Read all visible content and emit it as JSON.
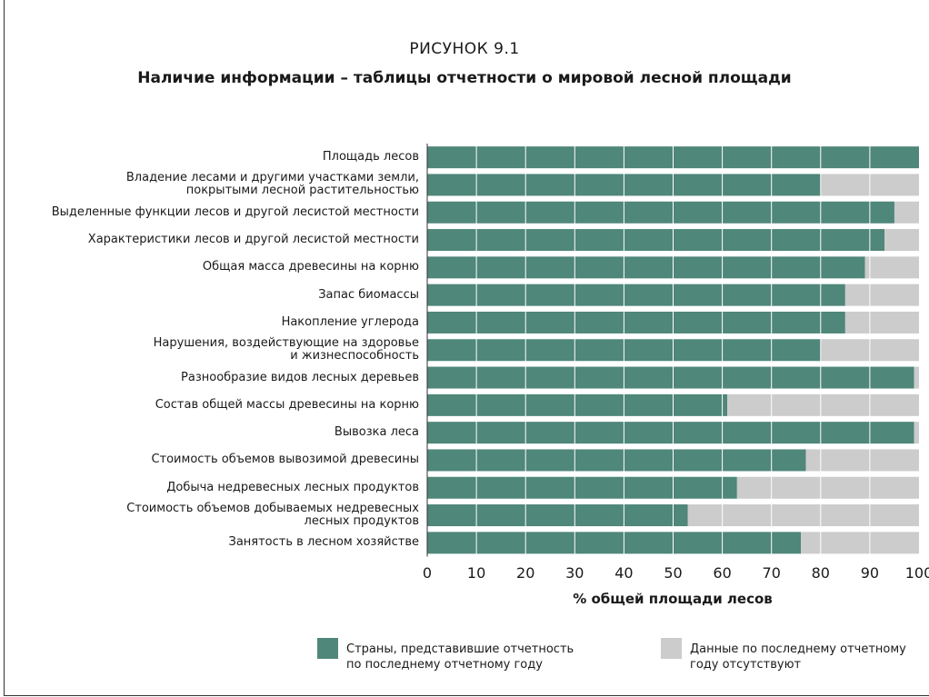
{
  "figure": {
    "label": "РИСУНОК 9.1",
    "title": "Наличие информации – таблицы отчетности о мировой лесной площади"
  },
  "colors": {
    "reported": "#4f877a",
    "missing": "#cccccc",
    "grid": "#ffffff"
  },
  "chart_data": {
    "type": "bar",
    "orientation": "horizontal",
    "stacked": true,
    "title": "Наличие информации – таблицы отчетности о мировой лесной площади",
    "xlabel": "% общей площади лесов",
    "xlim": [
      0,
      100
    ],
    "xticks": [
      0,
      10,
      20,
      30,
      40,
      50,
      60,
      70,
      80,
      90,
      100
    ],
    "grid": true,
    "legend_position": "bottom",
    "categories": [
      "Площадь лесов",
      "Владение лесами и другими участками земли,\nпокрытыми лесной растительностью",
      "Выделенные функции лесов и другой лесистой местности",
      "Характеристики лесов и другой лесистой местности",
      "Общая масса древесины на корню",
      "Запас биомассы",
      "Накопление углерода",
      "Нарушения, воздействующие на здоровье\nи жизнеспособность",
      "Разнообразие видов лесных деревьев",
      "Состав общей массы древесины на корню",
      "Вывозка леса",
      "Стоимость объемов вывозимой древесины",
      "Добыча недревесных лесных продуктов",
      "Стоимость объемов добываемых недревесных\nлесных продуктов",
      "Занятость в лесном хозяйстве"
    ],
    "series": [
      {
        "name": "Страны, представившие отчетность\nпо последнему отчетному году",
        "values": [
          100,
          80,
          95,
          93,
          89,
          85,
          85,
          80,
          99,
          61,
          99,
          77,
          63,
          53,
          76
        ]
      },
      {
        "name": "Данные по последнему отчетному\nгоду отсутствуют",
        "values": [
          0,
          20,
          5,
          7,
          11,
          15,
          15,
          20,
          1,
          39,
          1,
          23,
          37,
          47,
          24
        ]
      }
    ]
  }
}
